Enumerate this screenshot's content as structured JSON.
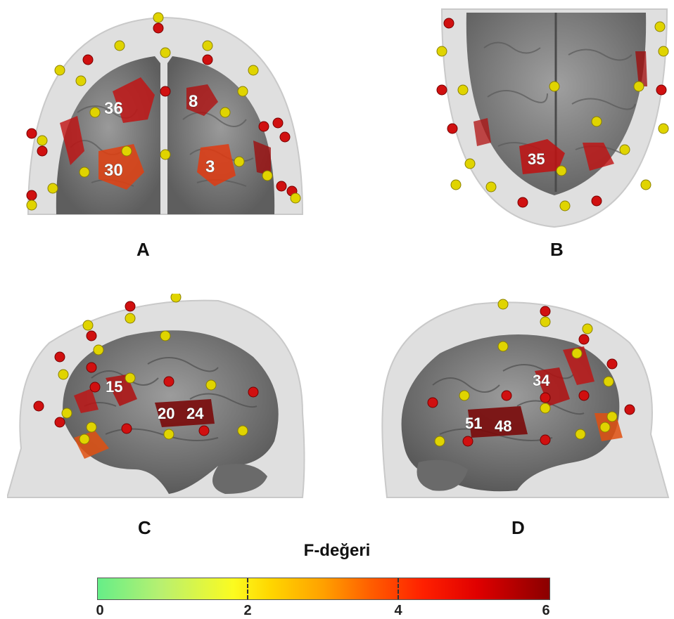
{
  "panels": [
    {
      "letter": "A",
      "roi_labels": [
        "36",
        "8",
        "30",
        "3"
      ]
    },
    {
      "letter": "B",
      "roi_labels": [
        "35"
      ]
    },
    {
      "letter": "C",
      "roi_labels": [
        "15",
        "20",
        "24"
      ]
    },
    {
      "letter": "D",
      "roi_labels": [
        "34",
        "51",
        "48"
      ]
    }
  ],
  "colorbar": {
    "title": "F-değeri",
    "ticks": [
      "0",
      "2",
      "4",
      "6"
    ],
    "range": [
      0,
      6
    ],
    "colors": [
      "#66ee88",
      "#fbfb20",
      "#ffa000",
      "#ff2000",
      "#8a0000"
    ]
  },
  "colors": {
    "head": "#d6d6d6",
    "brain": "#7f7f7f",
    "activation": "#cc1111",
    "electrode_red": "#d01010",
    "electrode_yellow": "#e0d400"
  }
}
